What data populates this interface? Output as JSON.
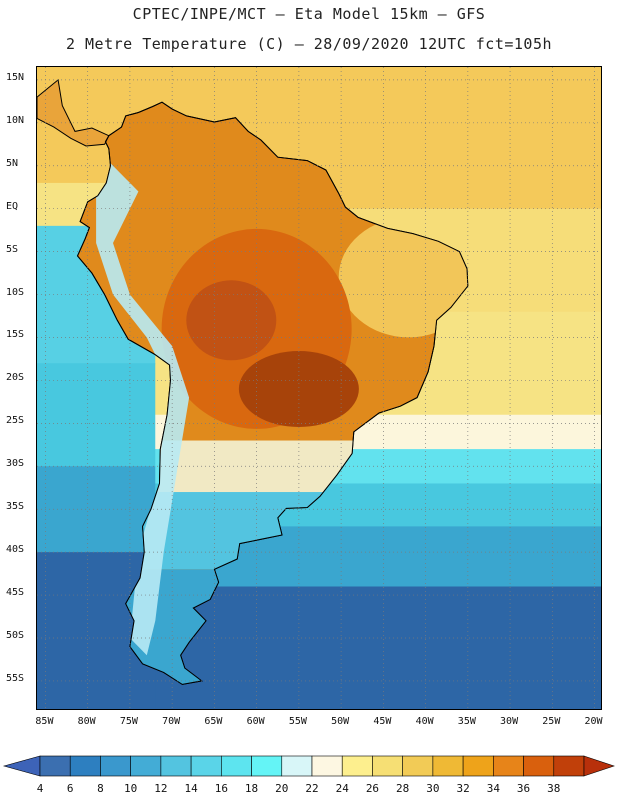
{
  "header": {
    "line1": "CPTEC/INPE/MCT –  Eta Model 15km – GFS",
    "line2": "2 Metre Temperature (C) – 28/09/2020 12UTC fct=105h"
  },
  "map": {
    "lat_labels": [
      "15N",
      "10N",
      "5N",
      "EQ",
      "5S",
      "10S",
      "15S",
      "20S",
      "25S",
      "30S",
      "35S",
      "40S",
      "45S",
      "50S",
      "55S"
    ],
    "lon_labels": [
      "85W",
      "80W",
      "75W",
      "70W",
      "65W",
      "60W",
      "55W",
      "50W",
      "45W",
      "40W",
      "35W",
      "30W",
      "25W",
      "20W"
    ],
    "extent": {
      "lon_min": -86,
      "lon_max": -19,
      "lat_min": -58.5,
      "lat_max": 16.5
    },
    "grid": "dotted",
    "ocean_bands": [
      {
        "lat_north": 16.5,
        "lat_south": 0,
        "color": "#f4c95a"
      },
      {
        "lat_north": 0,
        "lat_south": -12,
        "color": "#f6dd79"
      },
      {
        "lat_north": -12,
        "lat_south": -24,
        "color": "#f6e384"
      },
      {
        "lat_north": -24,
        "lat_south": -28,
        "color": "#fcf6dc"
      },
      {
        "lat_north": -28,
        "lat_south": -32,
        "color": "#62e2ee"
      },
      {
        "lat_north": -32,
        "lat_south": -37,
        "color": "#48c8df"
      },
      {
        "lat_north": -37,
        "lat_south": -44,
        "color": "#3aa6cf"
      },
      {
        "lat_north": -44,
        "lat_south": -58.5,
        "color": "#2d66a6"
      }
    ],
    "pacific_bands": [
      {
        "lat_north": 16.5,
        "lat_south": 3,
        "color": "#f4c95a"
      },
      {
        "lat_north": 3,
        "lat_south": -2,
        "color": "#f6e384"
      },
      {
        "lat_north": -2,
        "lat_south": -18,
        "color": "#57d0e4"
      },
      {
        "lat_north": -18,
        "lat_south": -30,
        "color": "#48c8df"
      },
      {
        "lat_north": -30,
        "lat_south": -40,
        "color": "#3aa6cf"
      },
      {
        "lat_north": -40,
        "lat_south": -58.5,
        "color": "#2d66a6"
      }
    ],
    "land_color": "#e08a1c",
    "hot_core_color": "#a7430a",
    "andes_color": "#b8eaf4"
  },
  "colorbar": {
    "labels": [
      "4",
      "6",
      "8",
      "10",
      "12",
      "14",
      "16",
      "18",
      "20",
      "22",
      "24",
      "26",
      "28",
      "30",
      "32",
      "34",
      "36",
      "38"
    ],
    "colors": [
      "#3b6fb0",
      "#2d7fc0",
      "#3a98cd",
      "#43acd6",
      "#53c4e0",
      "#5ad4e8",
      "#5de4ef",
      "#64f4f6",
      "#d8f6f8",
      "#fdf7e2",
      "#fdef8e",
      "#f6df74",
      "#f2cb56",
      "#efb935",
      "#eea31a",
      "#e78419",
      "#d9600d",
      "#c1400a"
    ],
    "low_arrow_color": "#3d63b8",
    "high_arrow_color": "#b8300b"
  }
}
